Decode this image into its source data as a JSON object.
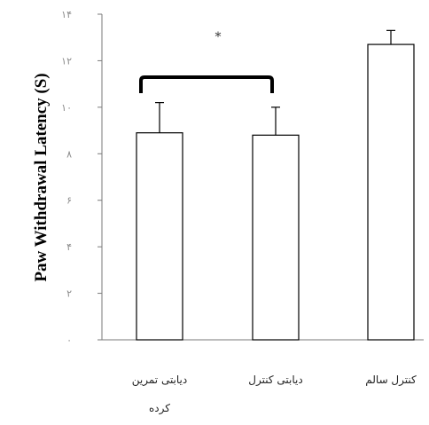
{
  "chart_data": {
    "type": "bar",
    "title": "",
    "xlabel": "",
    "ylabel": "Paw Withdrawal Latency (S)",
    "ylim": [
      0,
      14
    ],
    "yticks": [
      0,
      2,
      4,
      6,
      8,
      10,
      12,
      14
    ],
    "ytick_labels": [
      "٠",
      "٢",
      "۴",
      "۶",
      "٨",
      "١٠",
      "١٢",
      "١۴"
    ],
    "categories": [
      [
        "دیابتی تمرین",
        "کرده"
      ],
      [
        "دیابتی کنترل"
      ],
      [
        "کنترل سالم"
      ]
    ],
    "values": [
      8.9,
      8.8,
      12.7
    ],
    "errors": [
      1.3,
      1.2,
      0.6
    ],
    "bar_fill": "#ffffff",
    "bar_stroke": "#000000",
    "grid": false,
    "annotations": [
      {
        "text": "*",
        "bracket_between": [
          0,
          1
        ]
      }
    ]
  }
}
